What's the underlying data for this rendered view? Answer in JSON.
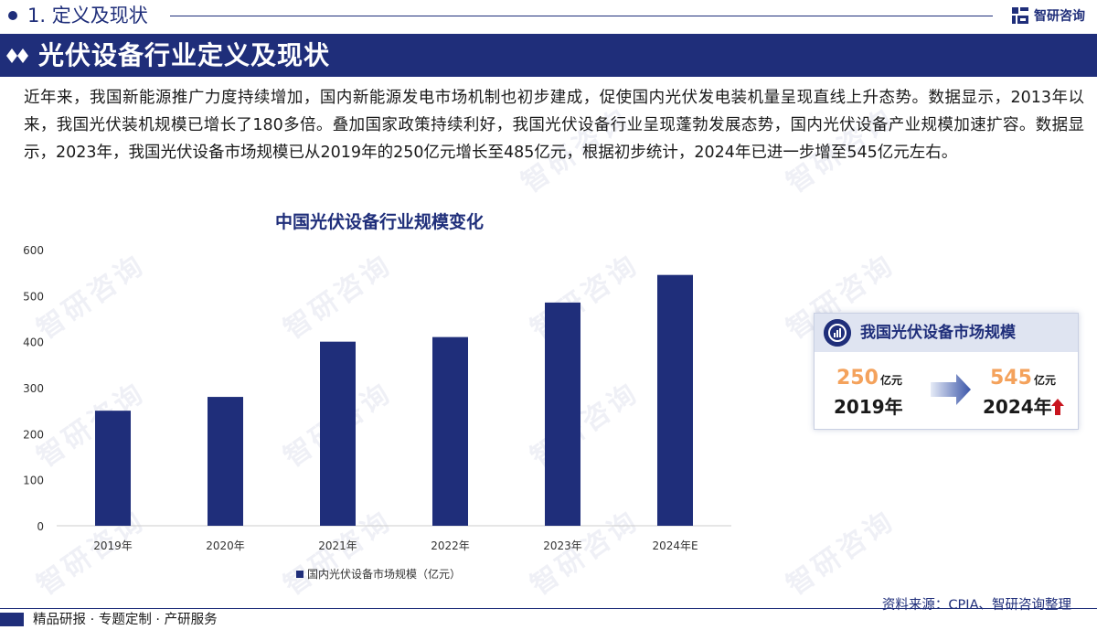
{
  "header": {
    "section_title": "1. 定义及现状",
    "brand": "智研咨询",
    "banner_title": "光伏设备行业定义及现状"
  },
  "intro": "近年来，我国新能源推广力度持续增加，国内新能源发电市场机制也初步建成，促使国内光伏发电装机量呈现直线上升态势。数据显示，2013年以来，我国光伏装机规模已增长了180多倍。叠加国家政策持续利好，我国光伏设备行业呈现蓬勃发展态势，国内光伏设备产业规模加速扩容。数据显示，2023年，我国光伏设备市场规模已从2019年的250亿元增长至485亿元，根据初步统计，2024年已进一步增至545亿元左右。",
  "chart_data": {
    "type": "bar",
    "title": "中国光伏设备行业规模变化",
    "categories": [
      "2019年",
      "2020年",
      "2021年",
      "2022年",
      "2023年",
      "2024年E"
    ],
    "series": [
      {
        "name": "国内光伏设备市场规模（亿元）",
        "values": [
          250,
          280,
          400,
          410,
          485,
          545
        ]
      }
    ],
    "ylim": [
      0,
      600
    ],
    "yticks": [
      0,
      100,
      200,
      300,
      400,
      500,
      600
    ],
    "grid": false,
    "legend": "bottom",
    "bar_color": "#1f2e7a"
  },
  "card": {
    "title": "我国光伏设备市场规模",
    "from_value": "250",
    "from_unit": "亿元",
    "from_year": "2019年",
    "to_value": "545",
    "to_unit": "亿元",
    "to_year": "2024年"
  },
  "footer": {
    "left": "精品研报 · 专题定制 · 产研服务",
    "source": "资料来源：CPIA、智研咨询整理"
  },
  "watermark": "智研咨询",
  "colors": {
    "primary": "#1f2e7a",
    "accent": "#f4a25c",
    "up_arrow": "#c8141e"
  }
}
